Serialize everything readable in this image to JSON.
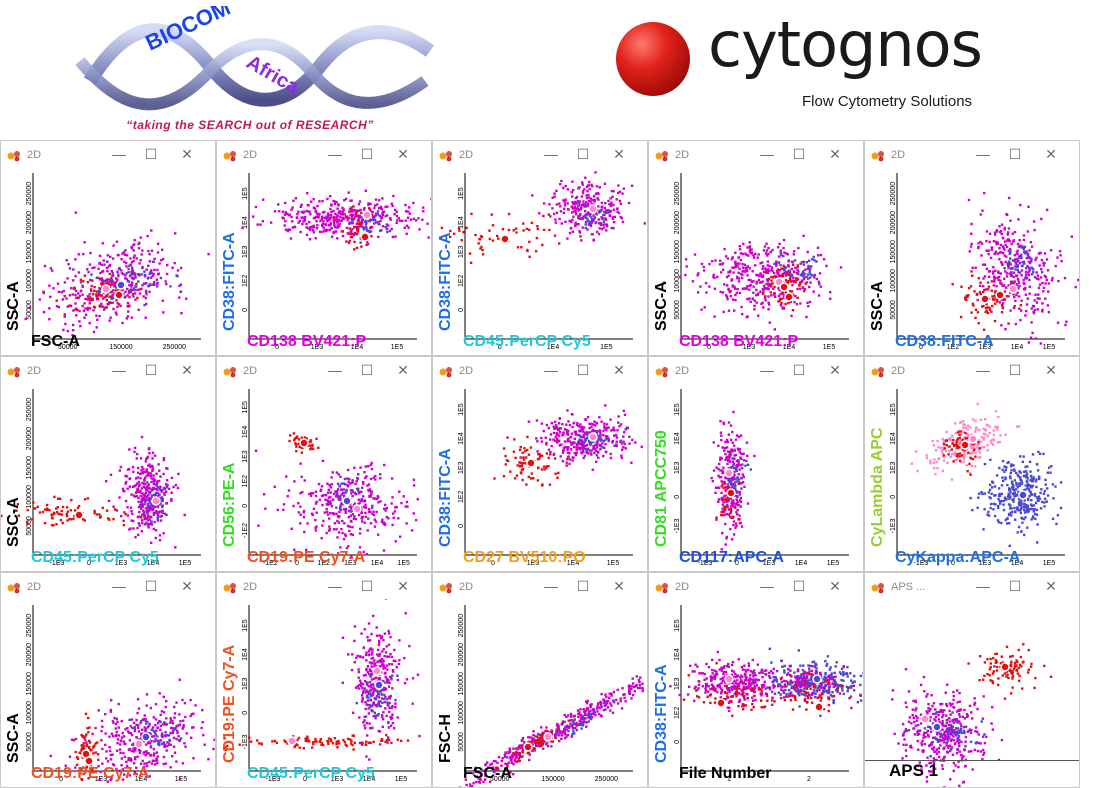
{
  "header": {
    "biocom_text": "BIOCOM",
    "africa_text": "Africa",
    "tagline": "“taking the SEARCH out of RESEARCH”",
    "cytognos_name": "cytognos",
    "cytognos_sub": "Flow Cytometry Solutions"
  },
  "window_buttons": {
    "minimize": "—",
    "maximize": "☐",
    "close": "✕"
  },
  "colors": {
    "magenta": "#cc00cc",
    "red": "#e01010",
    "blue": "#4a4ad0",
    "pink": "#ff88cc",
    "purple": "#8a2be2"
  },
  "panels": [
    {
      "title": "2D",
      "xlabel": "FSC-A",
      "ylabel": "SSC-A",
      "xcolor": "#000000",
      "ycolor": "#000000",
      "xticks": [
        "50000",
        "150000",
        "250000"
      ],
      "yticks": [
        "50000",
        "100000",
        "150000",
        "200000",
        "250000"
      ],
      "kind": "scatter1"
    },
    {
      "title": "2D",
      "xlabel": "CD138 BV421:P",
      "ylabel": "CD38:FITC-A",
      "xcolor": "#e000e0",
      "ycolor": "#1f6fe0",
      "xticks": [
        "0",
        "1E3",
        "1E4",
        "1E5"
      ],
      "yticks": [
        "0",
        "1E2",
        "1E3",
        "1E4",
        "1E5"
      ],
      "kind": "scatter2"
    },
    {
      "title": "2D",
      "xlabel": "CD45:PerCP Cy5",
      "ylabel": "CD38:FITC-A",
      "xcolor": "#22c7d8",
      "ycolor": "#1f6fe0",
      "xticks": [
        "0",
        "1E4",
        "1E5"
      ],
      "yticks": [
        "0",
        "1E2",
        "1E3",
        "1E4",
        "1E5"
      ],
      "kind": "scatter3"
    },
    {
      "title": "2D",
      "xlabel": "CD138 BV421:P",
      "ylabel": "SSC-A",
      "xcolor": "#e000e0",
      "ycolor": "#000000",
      "xticks": [
        "0",
        "1E3",
        "1E4",
        "1E5"
      ],
      "yticks": [
        "50000",
        "100000",
        "150000",
        "200000",
        "250000"
      ],
      "kind": "scatter4"
    },
    {
      "title": "2D",
      "xlabel": "CD38:FITC-A",
      "ylabel": "SSC-A",
      "xcolor": "#1f6fe0",
      "ycolor": "#000000",
      "xticks": [
        "0",
        "1E2",
        "1E3",
        "1E4",
        "1E5"
      ],
      "yticks": [
        "50000",
        "100000",
        "150000",
        "200000",
        "250000"
      ],
      "kind": "scatter5"
    },
    {
      "title": "2D",
      "xlabel": "CD45:PerCP Cy5",
      "ylabel": "SSC-A",
      "xcolor": "#22c7d8",
      "ycolor": "#000000",
      "xticks": [
        "-1E3",
        "0",
        "1E3",
        "1E4",
        "1E5"
      ],
      "yticks": [
        "50000",
        "100000",
        "150000",
        "200000",
        "250000"
      ],
      "kind": "scatter6"
    },
    {
      "title": "2D",
      "xlabel": "CD19:PE Cy7-A",
      "ylabel": "CD56:PE-A",
      "xcolor": "#f05020",
      "ycolor": "#33dd22",
      "xticks": [
        "-1E2",
        "0",
        "1E2",
        "1E3",
        "1E4",
        "1E5"
      ],
      "yticks": [
        "-1E2",
        "0",
        "1E2",
        "1E3",
        "1E4",
        "1E5"
      ],
      "kind": "scatter7"
    },
    {
      "title": "2D",
      "xlabel": "CD27 BV510:PO",
      "ylabel": "CD38:FITC-A",
      "xcolor": "#f0a020",
      "ycolor": "#1f6fe0",
      "xticks": [
        "0",
        "1E3",
        "1E4",
        "1E5"
      ],
      "yticks": [
        "0",
        "1E2",
        "1E3",
        "1E4",
        "1E5"
      ],
      "kind": "scatter8"
    },
    {
      "title": "2D",
      "xlabel": "CD117:APC-A",
      "ylabel": "CD81 APCC750",
      "xcolor": "#1f4fe0",
      "ycolor": "#33dd22",
      "xticks": [
        "-1E3",
        "0",
        "1E3",
        "1E4",
        "1E5"
      ],
      "yticks": [
        "-1E3",
        "0",
        "1E3",
        "1E4",
        "1E5"
      ],
      "kind": "scatter9"
    },
    {
      "title": "2D",
      "xlabel": "CyKappa:APC-A",
      "ylabel": "CyLambda APC",
      "xcolor": "#1f6fe0",
      "ycolor": "#9acd32",
      "xticks": [
        "-1E3",
        "0",
        "1E3",
        "1E4",
        "1E5"
      ],
      "yticks": [
        "-1E3",
        "0",
        "1E3",
        "1E4",
        "1E5"
      ],
      "kind": "scatter10"
    },
    {
      "title": "2D",
      "xlabel": "CD19:PE Cy7-A",
      "ylabel": "SSC-A",
      "xcolor": "#f05020",
      "ycolor": "#000000",
      "xticks": [
        "0",
        "1E3",
        "1E4",
        "1E5"
      ],
      "yticks": [
        "50000",
        "100000",
        "150000",
        "200000",
        "250000"
      ],
      "kind": "scatter11"
    },
    {
      "title": "2D",
      "xlabel": "CD45:PerCP Cy5",
      "ylabel": "CD19:PE Cy7-A",
      "xcolor": "#22c7d8",
      "ycolor": "#f05020",
      "xticks": [
        "-1E3",
        "0",
        "1E3",
        "1E4",
        "1E5"
      ],
      "yticks": [
        "-1E3",
        "0",
        "1E3",
        "1E4",
        "1E5"
      ],
      "kind": "scatter12"
    },
    {
      "title": "2D",
      "xlabel": "FSC-A",
      "ylabel": "FSC-H",
      "xcolor": "#000000",
      "ycolor": "#000000",
      "xticks": [
        "50000",
        "150000",
        "250000"
      ],
      "yticks": [
        "50000",
        "100000",
        "150000",
        "200000",
        "250000"
      ],
      "kind": "scatter13"
    },
    {
      "title": "2D",
      "xlabel": "File Number",
      "ylabel": "CD38:FITC-A",
      "xcolor": "#000000",
      "ycolor": "#1f6fe0",
      "xticks": [
        "1",
        "2"
      ],
      "yticks": [
        "0",
        "1E2",
        "1E3",
        "1E4",
        "1E5"
      ],
      "kind": "scatter14"
    },
    {
      "title": "APS ...",
      "xlabel": "",
      "ylabel": "",
      "xcolor": "#000000",
      "ycolor": "#000000",
      "xticks": [],
      "yticks": [],
      "kind": "aps",
      "aps_label": "APS 1"
    }
  ]
}
